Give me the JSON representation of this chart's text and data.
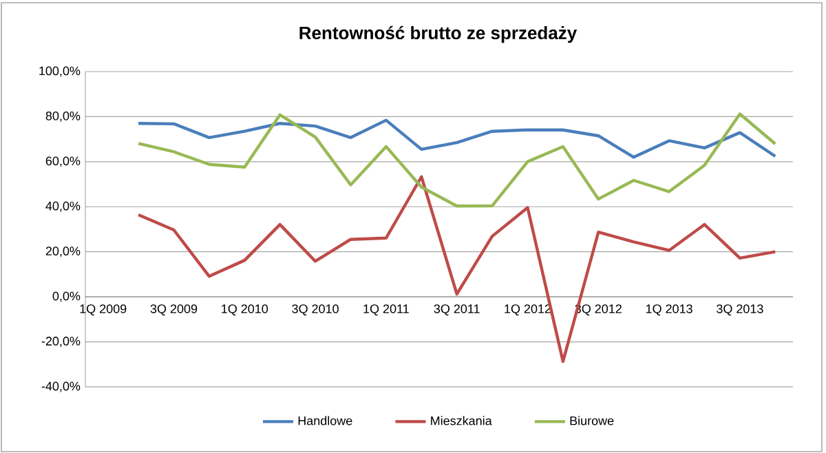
{
  "chart_data": {
    "type": "line",
    "title": "Rentowność brutto ze sprzedaży",
    "categories": [
      "1Q 2009",
      null,
      "3Q 2009",
      null,
      "1Q 2010",
      null,
      "3Q 2010",
      null,
      "1Q 2011",
      null,
      "3Q 2011",
      null,
      "1Q 2012",
      null,
      "3Q 2012",
      null,
      "1Q 2013",
      null,
      "3Q 2013",
      null
    ],
    "series": [
      {
        "name": "Handlowe",
        "color": "#4a7ebb",
        "values": [
          null,
          77,
          76.8,
          70.7,
          73.5,
          77,
          75.8,
          70.7,
          78.4,
          65.5,
          68.5,
          73.5,
          74.1,
          74.1,
          71.5,
          62,
          69.3,
          66.1,
          72.9,
          62.4
        ]
      },
      {
        "name": "Mieszkania",
        "color": "#be4b48",
        "values": [
          null,
          36.4,
          29.7,
          9.1,
          16.2,
          32.1,
          15.8,
          25.5,
          26.1,
          53.3,
          1.2,
          26.9,
          39.6,
          -28.7,
          28.7,
          24.4,
          20.6,
          32.1,
          17.2,
          20
        ]
      },
      {
        "name": "Biurowe",
        "color": "#98b954",
        "values": [
          null,
          68.1,
          64.4,
          58.8,
          57.6,
          80.8,
          70.9,
          49.7,
          66.7,
          48.7,
          40.3,
          40.4,
          60,
          66.7,
          43.4,
          51.7,
          46.7,
          58.4,
          81.2,
          67.9
        ]
      }
    ],
    "ylim": [
      -40,
      100
    ],
    "yticks": [
      {
        "value": -40,
        "label": "-40,0%"
      },
      {
        "value": -20,
        "label": "-20,0%"
      },
      {
        "value": 0,
        "label": "0,0%"
      },
      {
        "value": 20,
        "label": "20,0%"
      },
      {
        "value": 40,
        "label": "40,0%"
      },
      {
        "value": 60,
        "label": "60,0%"
      },
      {
        "value": 80,
        "label": "80,0%"
      },
      {
        "value": 100,
        "label": "100,0%"
      }
    ],
    "grid": "y",
    "legend": "bottom",
    "marker": "none",
    "line_style": "solid"
  }
}
